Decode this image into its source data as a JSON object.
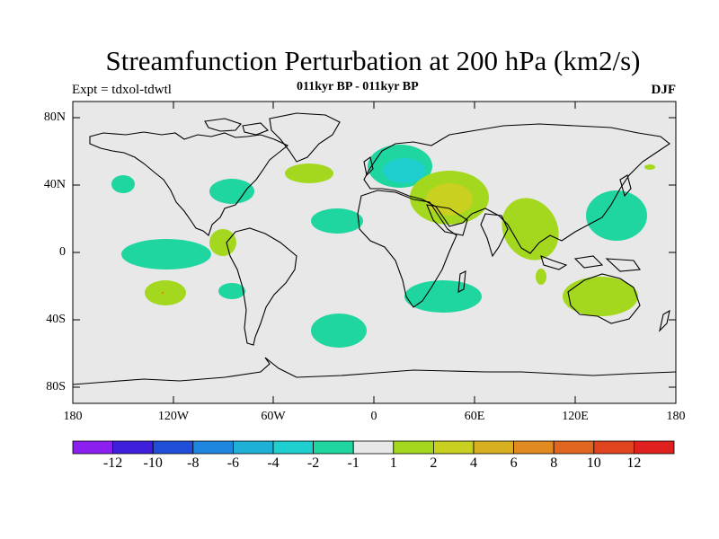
{
  "title": "Streamfunction Perturbation at 200 hPa (km2/s)",
  "left_label": "Expt = tdxol-tdwtl",
  "center_label": "011kyr BP - 011kyr BP",
  "right_label": "DJF",
  "lat_ticks": [
    "80N",
    "40N",
    "0",
    "40S",
    "80S"
  ],
  "lon_ticks": [
    "180",
    "120W",
    "60W",
    "0",
    "60E",
    "120E",
    "180"
  ],
  "colorbar": {
    "labels": [
      "-12",
      "-10",
      "-8",
      "-6",
      "-4",
      "-2",
      "-1",
      "1",
      "2",
      "4",
      "6",
      "8",
      "10",
      "12"
    ],
    "colors": [
      "#8a1ff0",
      "#3f1fdc",
      "#1f4fd8",
      "#1f86e0",
      "#1fb0d8",
      "#1fcfd0",
      "#1fd6a0",
      "#e8e8e8",
      "#a3d81f",
      "#c9d01f",
      "#d8b01f",
      "#e08a1f",
      "#e0661f",
      "#e0441f",
      "#e01f1f"
    ]
  },
  "map": {
    "background": "#e8e8e8",
    "anomalies": [
      {
        "region": "North Atlantic / Eastern US",
        "color": "#1fd6a0"
      },
      {
        "region": "Europe / Scandinavia",
        "color": "#1fd6a0"
      },
      {
        "region": "Northern Europe core",
        "color": "#1fcfd0"
      },
      {
        "region": "Middle East / Arabia",
        "color": "#a3d81f"
      },
      {
        "region": "Middle East core",
        "color": "#c9d01f"
      },
      {
        "region": "South Asia / Bay of Bengal",
        "color": "#a3d81f"
      },
      {
        "region": "Western Pacific / Japan",
        "color": "#1fd6a0"
      },
      {
        "region": "Australia",
        "color": "#a3d81f"
      },
      {
        "region": "Eastern Pacific",
        "color": "#1fd6a0"
      },
      {
        "region": "Colombia / Panama",
        "color": "#a3d81f"
      },
      {
        "region": "Tropical Atlantic",
        "color": "#1fd6a0"
      },
      {
        "region": "South Atlantic",
        "color": "#1fd6a0"
      },
      {
        "region": "South Africa / Indian Ocean",
        "color": "#1fd6a0"
      },
      {
        "region": "South Pacific",
        "color": "#a3d81f"
      }
    ]
  }
}
